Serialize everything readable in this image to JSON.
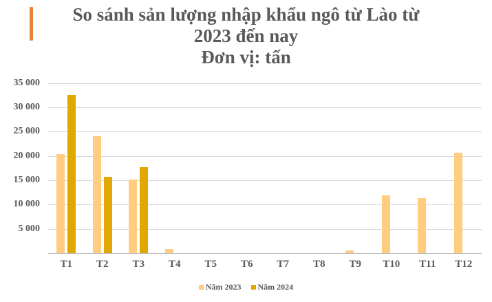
{
  "title": {
    "lines": [
      "So sánh sản lượng nhập khẩu ngô từ Lào từ",
      "2023 đến nay",
      "Đơn vị: tấn"
    ]
  },
  "colors": {
    "accent_bar": "#e8843a",
    "series_2023": "#ffcc80",
    "series_2024": "#e0a800",
    "text": "#595959",
    "grid": "#d9d9d9"
  },
  "chart_data": {
    "type": "bar",
    "title": "So sánh sản lượng nhập khẩu ngô từ Lào từ 2023 đến nay — Đơn vị: tấn",
    "xlabel": "",
    "ylabel": "",
    "ylim": [
      0,
      35000
    ],
    "yticks": [
      0,
      5000,
      10000,
      15000,
      20000,
      25000,
      30000,
      35000
    ],
    "ytick_labels": [
      "",
      "5 000",
      "10 000",
      "15 000",
      "20 000",
      "25 000",
      "30 000",
      "35 000"
    ],
    "grid": true,
    "legend_position": "bottom",
    "categories": [
      "T1",
      "T2",
      "T3",
      "T4",
      "T5",
      "T6",
      "T7",
      "T8",
      "T9",
      "T10",
      "T11",
      "T12"
    ],
    "series": [
      {
        "name": "Năm 2023",
        "color": "#ffcc80",
        "values": [
          20400,
          24000,
          15100,
          900,
          0,
          0,
          0,
          0,
          600,
          11900,
          11300,
          20700
        ]
      },
      {
        "name": "Năm 2024",
        "color": "#e0a800",
        "values": [
          32500,
          15700,
          17700,
          null,
          null,
          null,
          null,
          null,
          null,
          null,
          null,
          null
        ]
      }
    ]
  }
}
